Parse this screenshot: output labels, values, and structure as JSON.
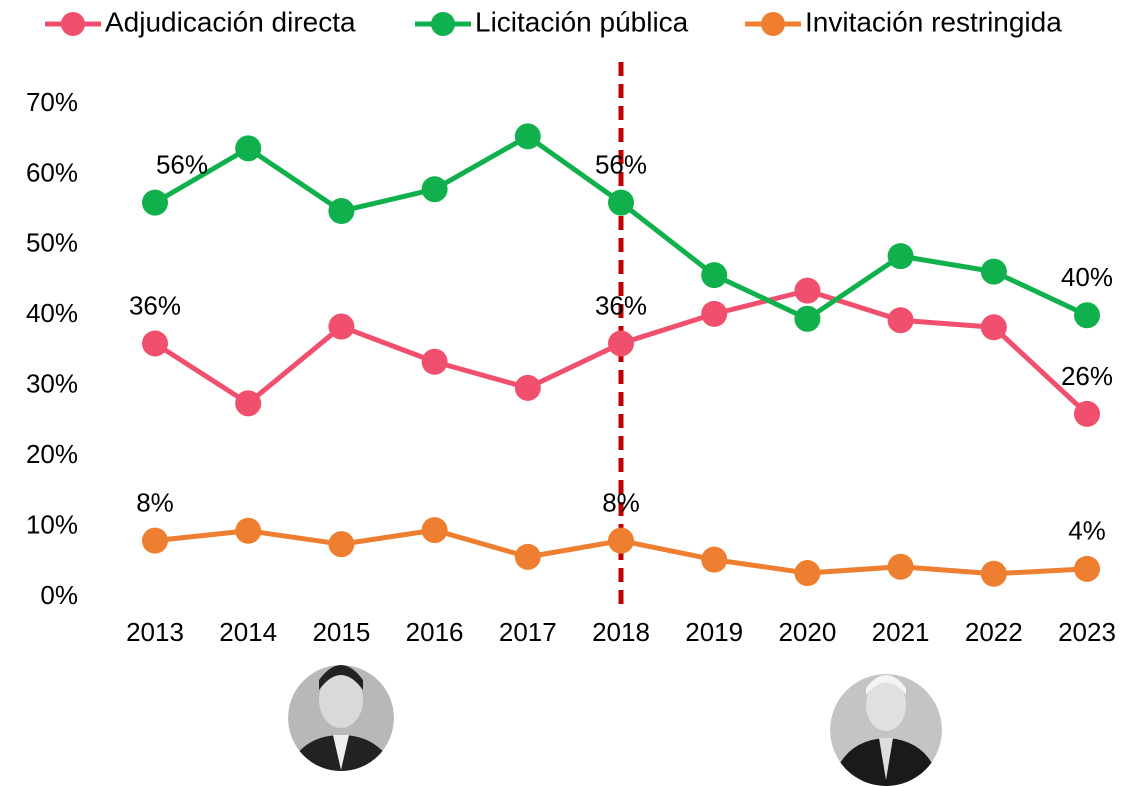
{
  "chart_data": {
    "type": "line",
    "categories": [
      "2013",
      "2014",
      "2015",
      "2016",
      "2017",
      "2018",
      "2019",
      "2020",
      "2021",
      "2022",
      "2023"
    ],
    "series": [
      {
        "name": "Adjudicación directa",
        "color": "#f0506e",
        "values": [
          36,
          27.5,
          38.4,
          33.4,
          29.7,
          36,
          40.2,
          43.5,
          39.3,
          38.3,
          26
        ],
        "value_labels": [
          "36%",
          null,
          null,
          null,
          null,
          "36%",
          null,
          null,
          null,
          null,
          "26%"
        ]
      },
      {
        "name": "Licitación pública",
        "color": "#10b04c",
        "values": [
          56,
          63.7,
          54.8,
          57.9,
          65.4,
          56,
          45.7,
          39.5,
          48.4,
          46.2,
          40
        ],
        "value_labels": [
          "56%",
          null,
          null,
          null,
          null,
          "56%",
          null,
          null,
          null,
          null,
          "40%"
        ]
      },
      {
        "name": "Invitación restringida",
        "color": "#ee7f30",
        "values": [
          8,
          9.4,
          7.5,
          9.5,
          5.7,
          8,
          5.3,
          3.4,
          4.3,
          3.3,
          4
        ],
        "value_labels": [
          "8%",
          null,
          null,
          null,
          null,
          "8%",
          null,
          null,
          null,
          null,
          "4%"
        ]
      }
    ],
    "ylim": [
      0,
      70
    ],
    "yticks": [
      {
        "value": 0,
        "label": "0%"
      },
      {
        "value": 10,
        "label": "10%"
      },
      {
        "value": 20,
        "label": "20%"
      },
      {
        "value": 30,
        "label": "30%"
      },
      {
        "value": 40,
        "label": "40%"
      },
      {
        "value": 50,
        "label": "50%"
      },
      {
        "value": 60,
        "label": "60%"
      },
      {
        "value": 70,
        "label": "70%"
      }
    ],
    "grid": false,
    "legend": "top",
    "reference_line": {
      "category": "2018",
      "color": "#c00000"
    }
  }
}
